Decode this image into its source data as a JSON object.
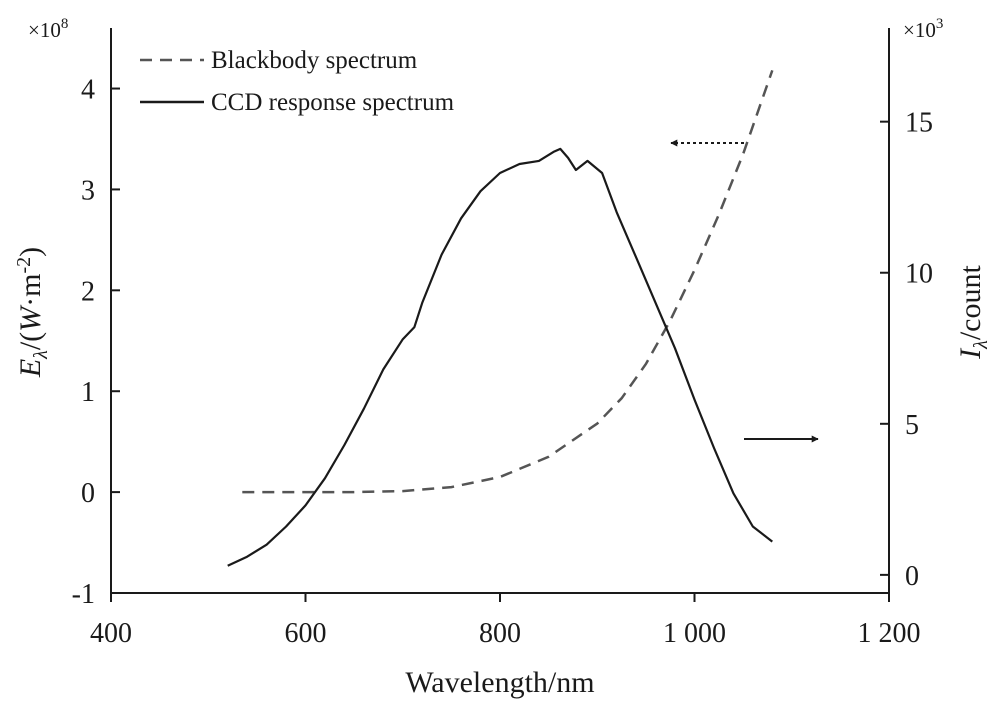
{
  "chart_data": {
    "type": "line",
    "xlabel": "Wavelength/nm",
    "xlim": [
      400,
      1200
    ],
    "x_ticks": [
      400,
      600,
      800,
      1000,
      1200
    ],
    "x_tick_labels": [
      "400",
      "600",
      "800",
      "1 000",
      "1 200"
    ],
    "y_left": {
      "label": "Eλ/(W·m-2)",
      "label_parts": {
        "e": "E",
        "sub": "λ",
        "mid": "/(",
        "w": "W",
        "unit": "·m",
        "sup": "-2",
        "close": ")"
      },
      "multiplier": "×10^8",
      "multiplier_parts": {
        "base": "×10",
        "exp": "8"
      },
      "lim": [
        -1,
        4.6
      ],
      "ticks": [
        -1,
        0,
        1,
        2,
        3,
        4
      ],
      "tick_labels": [
        "-1",
        "0",
        "1",
        "2",
        "3",
        "4"
      ]
    },
    "y_right": {
      "label": "Iλ/count",
      "label_parts": {
        "i": "I",
        "sub": "λ",
        "rest": "/count"
      },
      "multiplier": "×10^3",
      "multiplier_parts": {
        "base": "×10",
        "exp": "3"
      },
      "lim": [
        -0.6,
        18.1
      ],
      "ticks": [
        0,
        5,
        10,
        15
      ],
      "tick_labels": [
        "0",
        "5",
        "10",
        "15"
      ]
    },
    "legend": {
      "placement": "top-left",
      "entries": [
        "Blackbody spectrum",
        "CCD response spectrum"
      ]
    },
    "series": [
      {
        "name": "Blackbody spectrum",
        "axis": "left",
        "style": "dashed",
        "x": [
          535,
          600,
          650,
          700,
          750,
          800,
          850,
          900,
          925,
          950,
          975,
          1000,
          1025,
          1050,
          1080
        ],
        "y": [
          0.0,
          0.0,
          0.0,
          0.01,
          0.05,
          0.15,
          0.35,
          0.68,
          0.93,
          1.27,
          1.7,
          2.2,
          2.75,
          3.35,
          4.18
        ]
      },
      {
        "name": "CCD response spectrum",
        "axis": "right",
        "style": "solid",
        "x": [
          520,
          540,
          560,
          580,
          600,
          620,
          640,
          660,
          680,
          700,
          712,
          720,
          740,
          760,
          780,
          800,
          820,
          840,
          855,
          862,
          870,
          878,
          890,
          905,
          920,
          940,
          960,
          980,
          1000,
          1020,
          1040,
          1060,
          1080
        ],
        "y": [
          0.3,
          0.6,
          1.0,
          1.6,
          2.3,
          3.2,
          4.3,
          5.5,
          6.8,
          7.8,
          8.2,
          9.0,
          10.6,
          11.8,
          12.7,
          13.3,
          13.6,
          13.7,
          14.0,
          14.1,
          13.8,
          13.4,
          13.7,
          13.3,
          12.0,
          10.5,
          9.0,
          7.5,
          5.8,
          4.2,
          2.7,
          1.6,
          1.1
        ]
      }
    ],
    "annotations": [
      {
        "kind": "arrow",
        "style": "dotted",
        "direction": "left",
        "refers_to": "Blackbody spectrum"
      },
      {
        "kind": "arrow",
        "style": "solid",
        "direction": "right",
        "refers_to": "CCD response spectrum"
      }
    ],
    "grid": false
  }
}
